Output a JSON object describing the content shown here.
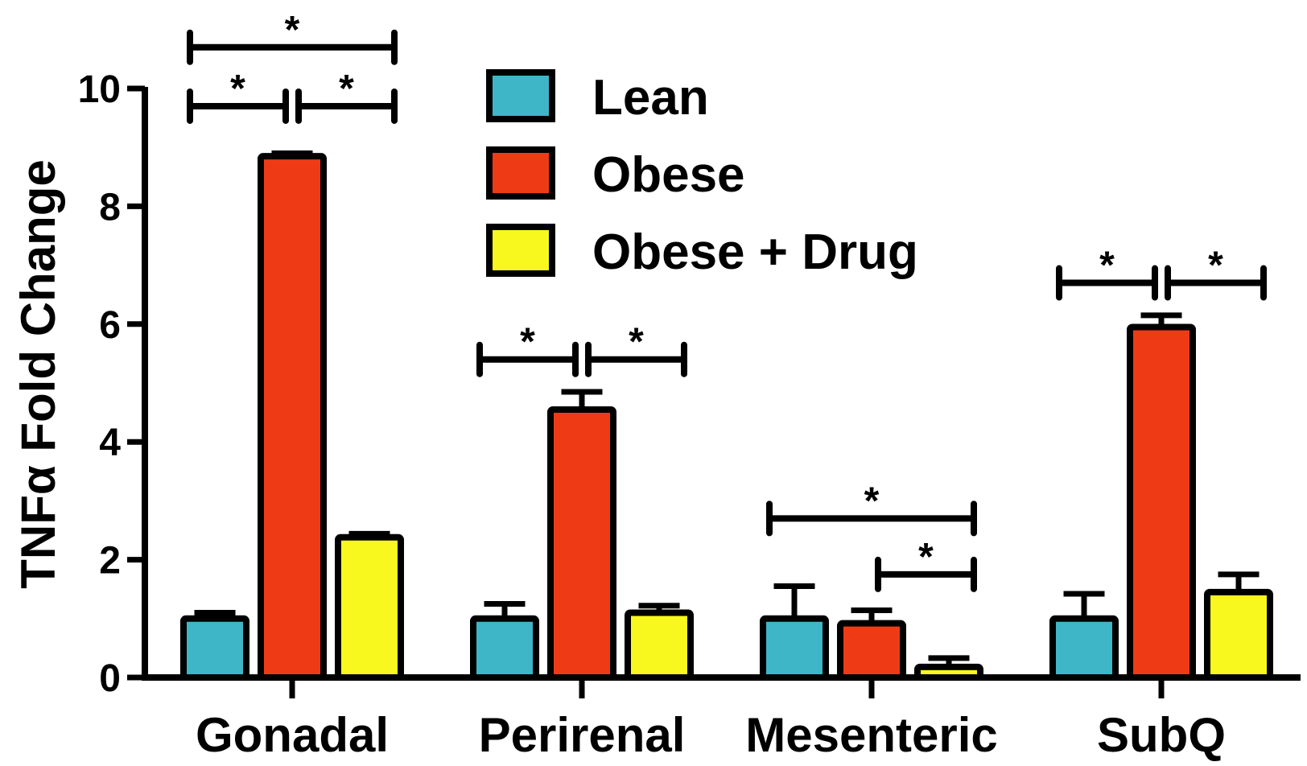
{
  "chart_data": {
    "type": "bar",
    "ylabel": "TNFα  Fold Change",
    "ylim": [
      0,
      10
    ],
    "yticks": [
      0,
      2,
      4,
      6,
      8,
      10
    ],
    "categories": [
      "Gonadal",
      "Perirenal",
      "Mesenteric",
      "SubQ"
    ],
    "legend_position": "top-center",
    "grid": false,
    "series": [
      {
        "name": "Lean",
        "color": "#3eb6c8",
        "values": [
          1.0,
          1.0,
          1.0,
          1.0
        ],
        "errors": [
          0.1,
          0.25,
          0.55,
          0.42
        ]
      },
      {
        "name": "Obese",
        "color": "#ee3b16",
        "values": [
          8.85,
          4.55,
          0.92,
          5.95
        ],
        "errors": [
          0.05,
          0.3,
          0.22,
          0.2
        ]
      },
      {
        "name": "Obese + Drug",
        "color": "#f8f81e",
        "values": [
          2.38,
          1.1,
          0.18,
          1.45
        ],
        "errors": [
          0.06,
          0.12,
          0.15,
          0.3
        ]
      }
    ],
    "significance": [
      {
        "category": 0,
        "from": 0,
        "to": 2,
        "level": 10.7,
        "label": "*"
      },
      {
        "category": 0,
        "from": 0,
        "to": 1,
        "level": 9.7,
        "label": "*"
      },
      {
        "category": 0,
        "from": 1,
        "to": 2,
        "level": 9.7,
        "label": "*"
      },
      {
        "category": 1,
        "from": 0,
        "to": 1,
        "level": 5.4,
        "label": "*"
      },
      {
        "category": 1,
        "from": 1,
        "to": 2,
        "level": 5.4,
        "label": "*"
      },
      {
        "category": 2,
        "from": 0,
        "to": 2,
        "level": 2.7,
        "label": "*"
      },
      {
        "category": 2,
        "from": 1,
        "to": 2,
        "level": 1.75,
        "label": "*"
      },
      {
        "category": 3,
        "from": 0,
        "to": 1,
        "level": 6.7,
        "label": "*"
      },
      {
        "category": 3,
        "from": 1,
        "to": 2,
        "level": 6.7,
        "label": "*"
      }
    ]
  }
}
